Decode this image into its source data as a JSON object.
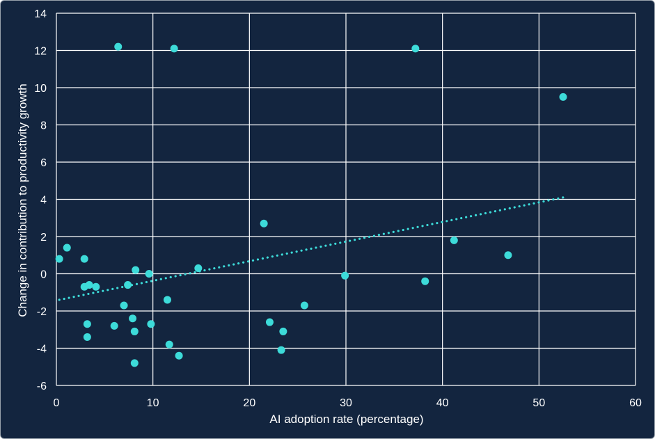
{
  "chart_data": {
    "type": "scatter",
    "title": "",
    "xlabel": "AI adoption rate (percentage)",
    "ylabel": "Change in contribution to productivity growth",
    "xlim": [
      0,
      60
    ],
    "ylim": [
      -6,
      14
    ],
    "xticks": [
      0,
      10,
      20,
      30,
      40,
      50,
      60
    ],
    "yticks": [
      -6,
      -4,
      -2,
      0,
      2,
      4,
      6,
      8,
      10,
      12,
      14
    ],
    "grid": true,
    "legend": "none",
    "colors": {
      "background": "#13253f",
      "grid": "#ffffff",
      "points": "#3ddbd9",
      "trendline": "#3ddbd9",
      "text": "#ffffff"
    },
    "points": [
      {
        "x": 0.3,
        "y": 0.8
      },
      {
        "x": 1.1,
        "y": 1.4
      },
      {
        "x": 2.9,
        "y": 0.8
      },
      {
        "x": 2.9,
        "y": -0.7
      },
      {
        "x": 3.4,
        "y": -0.6
      },
      {
        "x": 4.1,
        "y": -0.7
      },
      {
        "x": 3.2,
        "y": -2.7
      },
      {
        "x": 3.2,
        "y": -3.4
      },
      {
        "x": 6.0,
        "y": -2.8
      },
      {
        "x": 6.4,
        "y": 12.2
      },
      {
        "x": 7.0,
        "y": -1.7
      },
      {
        "x": 7.4,
        "y": -0.6
      },
      {
        "x": 7.9,
        "y": -2.4
      },
      {
        "x": 8.2,
        "y": 0.2
      },
      {
        "x": 8.1,
        "y": -3.1
      },
      {
        "x": 8.1,
        "y": -4.8
      },
      {
        "x": 9.6,
        "y": 0.0
      },
      {
        "x": 9.8,
        "y": -2.7
      },
      {
        "x": 11.5,
        "y": -1.4
      },
      {
        "x": 11.7,
        "y": -3.8
      },
      {
        "x": 12.2,
        "y": 12.1
      },
      {
        "x": 12.7,
        "y": -4.4
      },
      {
        "x": 14.7,
        "y": 0.3
      },
      {
        "x": 21.5,
        "y": 2.7
      },
      {
        "x": 22.1,
        "y": -2.6
      },
      {
        "x": 23.5,
        "y": -3.1
      },
      {
        "x": 23.3,
        "y": -4.1
      },
      {
        "x": 25.7,
        "y": -1.7
      },
      {
        "x": 29.9,
        "y": -0.1
      },
      {
        "x": 37.2,
        "y": 12.1
      },
      {
        "x": 38.2,
        "y": -0.4
      },
      {
        "x": 41.2,
        "y": 1.8
      },
      {
        "x": 46.8,
        "y": 1.0
      },
      {
        "x": 52.5,
        "y": 9.5
      }
    ],
    "trendline": {
      "style": "dotted",
      "from": {
        "x": 0.3,
        "y": -1.4
      },
      "to": {
        "x": 52.5,
        "y": 4.1
      }
    }
  }
}
